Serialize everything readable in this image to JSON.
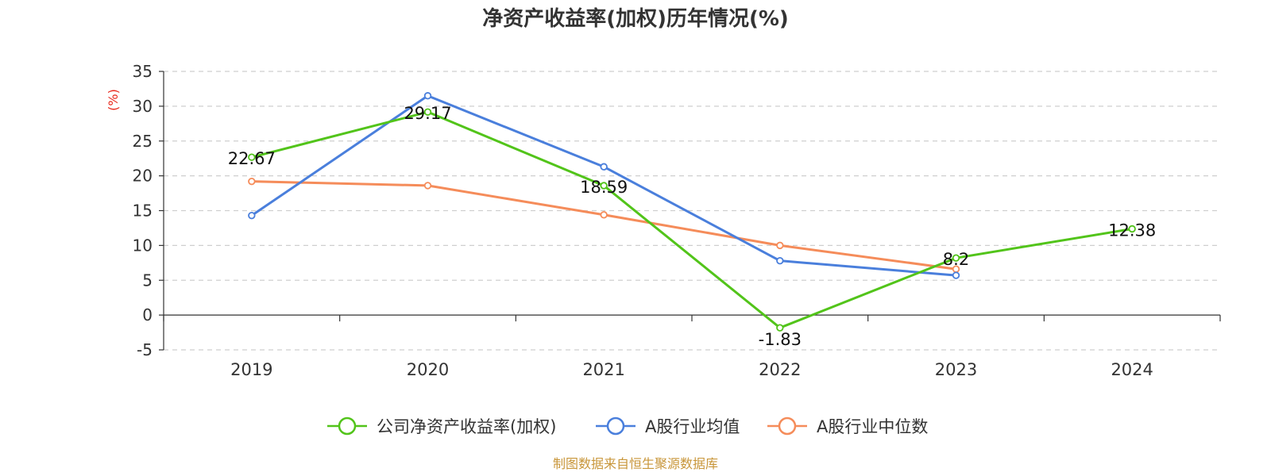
{
  "chart_data": {
    "type": "line",
    "title": "净资产收益率(加权)历年情况(%)",
    "ylabel": "(%)",
    "categories": [
      "2019",
      "2020",
      "2021",
      "2022",
      "2023",
      "2024"
    ],
    "ylim": [
      -5,
      35
    ],
    "yticks": [
      "-5",
      "0",
      "5",
      "10",
      "15",
      "20",
      "25",
      "30",
      "35"
    ],
    "grid": true,
    "legend_position": "bottom",
    "series": [
      {
        "name": "公司净资产收益率(加权)",
        "color": "#52c41a",
        "values": [
          22.67,
          29.17,
          18.59,
          -1.83,
          8.2,
          12.38
        ],
        "labels": [
          "22.67",
          "29.17",
          "18.59",
          "-1.83",
          "8.2",
          "12.38"
        ]
      },
      {
        "name": "A股行业均值",
        "color": "#4a7fdc",
        "values": [
          14.3,
          31.5,
          21.3,
          7.8,
          5.7,
          null
        ]
      },
      {
        "name": "A股行业中位数",
        "color": "#f58c5a",
        "values": [
          19.2,
          18.6,
          14.4,
          10.0,
          6.6,
          null
        ]
      }
    ],
    "source": "制图数据来自恒生聚源数据库"
  }
}
